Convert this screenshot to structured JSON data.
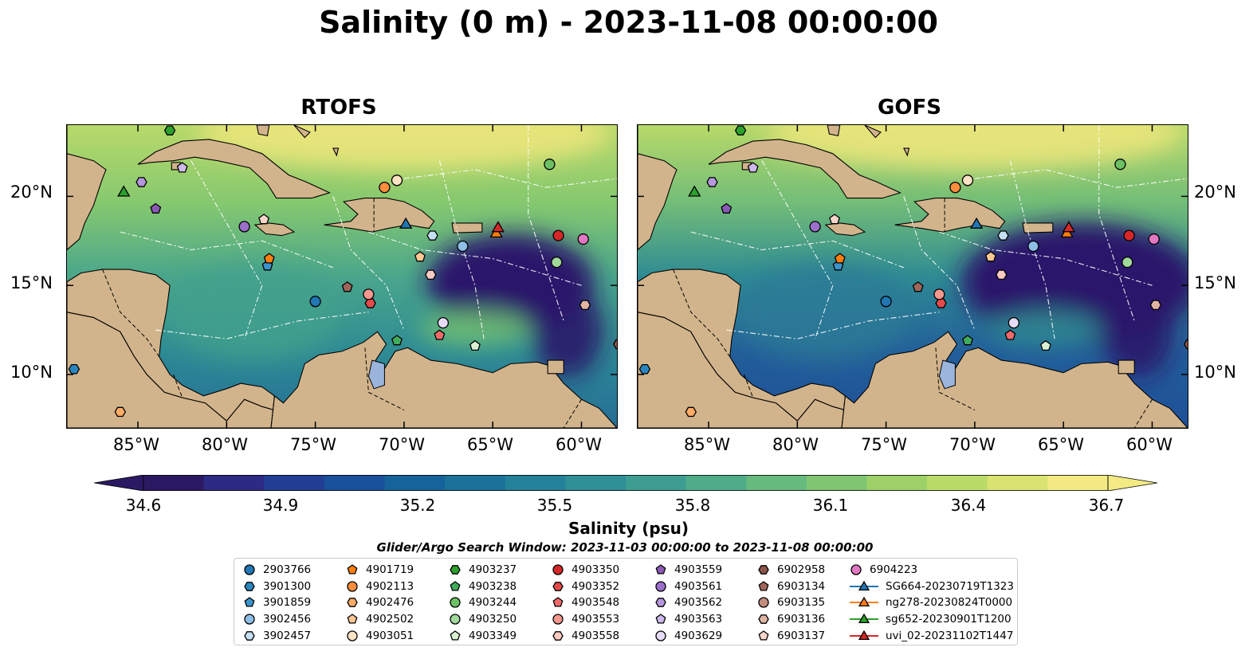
{
  "title": "Salinity (0 m) - 2023-11-08 00:00:00",
  "panels": [
    {
      "title": "RTOFS"
    },
    {
      "title": "GOFS"
    }
  ],
  "axes": {
    "lon_ticks": [
      "85°W",
      "80°W",
      "75°W",
      "70°W",
      "65°W",
      "60°W"
    ],
    "lat_ticks": [
      "20°N",
      "15°N",
      "10°N"
    ]
  },
  "colorbar": {
    "ticks": [
      "34.6",
      "34.9",
      "35.2",
      "35.5",
      "35.8",
      "36.1",
      "36.4",
      "36.7"
    ],
    "label": "Salinity (psu)",
    "colors": [
      "#2b1a63",
      "#2c2a84",
      "#233f95",
      "#19519a",
      "#16629b",
      "#1a729b",
      "#23819a",
      "#2f8f97",
      "#3d9d91",
      "#4fac88",
      "#66ba7e",
      "#80c672",
      "#9dd168",
      "#bbdb68",
      "#d9e370",
      "#f3ea84"
    ]
  },
  "search_window": "Glider/Argo Search Window: 2023-11-03 00:00:00 to 2023-11-08 00:00:00",
  "legend": [
    {
      "label": "2903766",
      "marker": "circle",
      "color": "#1f77b4"
    },
    {
      "label": "3901300",
      "marker": "hexagon",
      "color": "#2b86c0"
    },
    {
      "label": "3901859",
      "marker": "pentagon",
      "color": "#3a93cc"
    },
    {
      "label": "3902456",
      "marker": "circle",
      "color": "#8ebfe6"
    },
    {
      "label": "3902457",
      "marker": "hexagon",
      "color": "#c6e0f5"
    },
    {
      "label": "4901719",
      "marker": "pentagon",
      "color": "#ff7f0e"
    },
    {
      "label": "4902113",
      "marker": "circle",
      "color": "#fd8d3c"
    },
    {
      "label": "4902476",
      "marker": "hexagon",
      "color": "#fdab66"
    },
    {
      "label": "4902502",
      "marker": "pentagon",
      "color": "#fdc894"
    },
    {
      "label": "4903051",
      "marker": "circle",
      "color": "#fee3c5"
    },
    {
      "label": "4903237",
      "marker": "hexagon",
      "color": "#2ca02c"
    },
    {
      "label": "4903238",
      "marker": "pentagon",
      "color": "#41ab5d"
    },
    {
      "label": "4903244",
      "marker": "circle",
      "color": "#6dc165"
    },
    {
      "label": "4903250",
      "marker": "circle",
      "color": "#a1d99b"
    },
    {
      "label": "4903349",
      "marker": "pentagon",
      "color": "#d9f0d3"
    },
    {
      "label": "4903350",
      "marker": "circle",
      "color": "#d62728"
    },
    {
      "label": "4903352",
      "marker": "hexagon",
      "color": "#e34a4a"
    },
    {
      "label": "4903548",
      "marker": "pentagon",
      "color": "#ef6b6b"
    },
    {
      "label": "4903553",
      "marker": "circle",
      "color": "#f4978e"
    },
    {
      "label": "4903558",
      "marker": "hexagon",
      "color": "#fbcbc3"
    },
    {
      "label": "4903559",
      "marker": "pentagon",
      "color": "#8a5ab5"
    },
    {
      "label": "4903561",
      "marker": "circle",
      "color": "#9c6fcb"
    },
    {
      "label": "4903562",
      "marker": "hexagon",
      "color": "#b497dc"
    },
    {
      "label": "4903563",
      "marker": "pentagon",
      "color": "#cdb9ea"
    },
    {
      "label": "4903629",
      "marker": "circle",
      "color": "#e6dbf7"
    },
    {
      "label": "6902958",
      "marker": "hexagon",
      "color": "#8c564b"
    },
    {
      "label": "6903134",
      "marker": "pentagon",
      "color": "#a0665a"
    },
    {
      "label": "6903135",
      "marker": "circle",
      "color": "#c08c7e"
    },
    {
      "label": "6903136",
      "marker": "hexagon",
      "color": "#e0b4a3"
    },
    {
      "label": "6903137",
      "marker": "pentagon",
      "color": "#f7d6c9"
    },
    {
      "label": "6904223",
      "marker": "circle",
      "color": "#e377c2"
    },
    {
      "label": "SG664-20230719T1323",
      "marker": "triangle",
      "color": "#1f77b4"
    },
    {
      "label": "ng278-20230824T0000",
      "marker": "triangle",
      "color": "#ff7f0e"
    },
    {
      "label": "sg652-20230901T1200",
      "marker": "triangle",
      "color": "#2ca02c"
    },
    {
      "label": "uvi_02-20231102T1447",
      "marker": "triangle",
      "color": "#d62728"
    }
  ],
  "map_colors": {
    "land": "#d2b48c",
    "ocean_fresh": "#29176a",
    "ocean_mid": "#3e8f8a",
    "ocean_salty": "#b8d96a",
    "ocean_max": "#efe67c",
    "lake": "#9ab4dc"
  },
  "observations": [
    {
      "id": "2903766",
      "lon": -75.0,
      "lat": 14.1
    },
    {
      "id": "3901300",
      "lon": -88.6,
      "lat": 10.3
    },
    {
      "id": "3901859",
      "lon": -77.7,
      "lat": 16.1
    },
    {
      "id": "3902456",
      "lon": -66.7,
      "lat": 17.2
    },
    {
      "id": "3902457",
      "lon": -68.4,
      "lat": 17.8
    },
    {
      "id": "4901719",
      "lon": -77.6,
      "lat": 16.5
    },
    {
      "id": "4902113",
      "lon": -71.1,
      "lat": 20.5
    },
    {
      "id": "4902476",
      "lon": -86.0,
      "lat": 7.9
    },
    {
      "id": "4902502",
      "lon": -69.1,
      "lat": 16.6
    },
    {
      "id": "4903051",
      "lon": -70.4,
      "lat": 20.9
    },
    {
      "id": "4903237",
      "lon": -83.2,
      "lat": 23.7
    },
    {
      "id": "4903238",
      "lon": -70.4,
      "lat": 11.9
    },
    {
      "id": "4903244",
      "lon": -61.8,
      "lat": 21.8
    },
    {
      "id": "4903250",
      "lon": -61.4,
      "lat": 16.3
    },
    {
      "id": "4903349",
      "lon": -66.0,
      "lat": 11.6
    },
    {
      "id": "4903350",
      "lon": -61.3,
      "lat": 17.8
    },
    {
      "id": "4903352",
      "lon": -71.9,
      "lat": 14.0
    },
    {
      "id": "4903548",
      "lon": -68.0,
      "lat": 12.2
    },
    {
      "id": "4903553",
      "lon": -72.0,
      "lat": 14.5
    },
    {
      "id": "4903558",
      "lon": -68.5,
      "lat": 15.6
    },
    {
      "id": "4903559",
      "lon": -84.0,
      "lat": 19.3
    },
    {
      "id": "4903561",
      "lon": -79.0,
      "lat": 18.3
    },
    {
      "id": "4903562",
      "lon": -84.8,
      "lat": 20.8
    },
    {
      "id": "4903563",
      "lon": -82.5,
      "lat": 21.6
    },
    {
      "id": "4903629",
      "lon": -67.8,
      "lat": 12.9
    },
    {
      "id": "6902958",
      "lon": -57.9,
      "lat": 11.7
    },
    {
      "id": "6903134",
      "lon": -73.2,
      "lat": 14.9
    },
    {
      "id": "6903135",
      "lon": -57.5,
      "lat": 12.8
    },
    {
      "id": "6903136",
      "lon": -59.8,
      "lat": 13.9
    },
    {
      "id": "6903137",
      "lon": -77.9,
      "lat": 18.7
    },
    {
      "id": "6904223",
      "lon": -59.9,
      "lat": 17.6
    },
    {
      "id": "SG664-20230719T1323",
      "lon": -69.9,
      "lat": 18.4
    },
    {
      "id": "ng278-20230824T0000",
      "lon": -64.8,
      "lat": 17.9
    },
    {
      "id": "sg652-20230901T1200",
      "lon": -85.8,
      "lat": 20.2
    },
    {
      "id": "uvi_02-20231102T1447",
      "lon": -64.7,
      "lat": 18.2
    }
  ]
}
